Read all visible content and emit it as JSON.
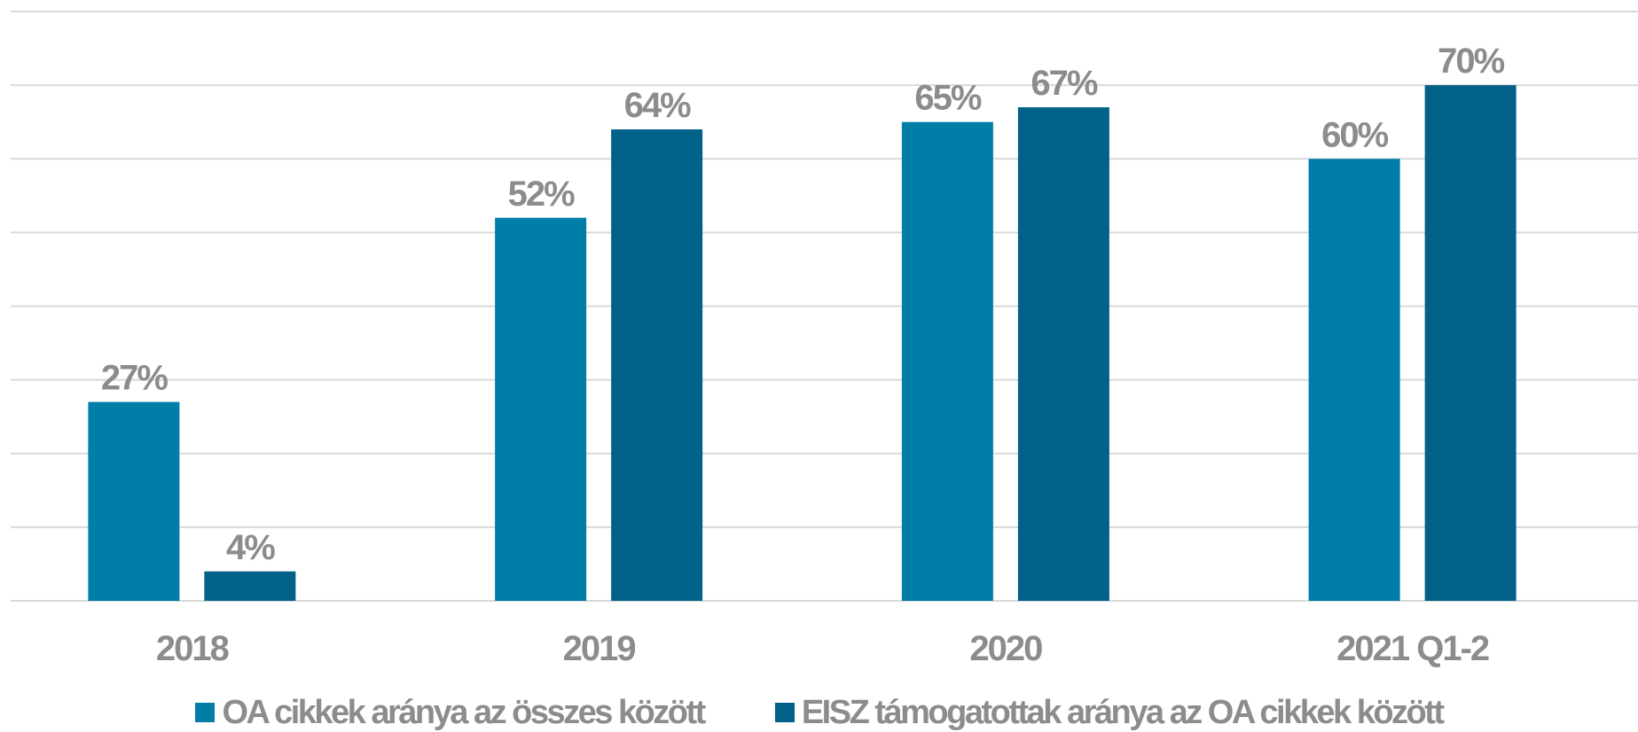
{
  "chart_data": {
    "type": "bar",
    "categories": [
      "2018",
      "2019",
      "2020",
      "2021 Q1-2"
    ],
    "series": [
      {
        "name": "OA cikkek aránya az összes között",
        "color": "#007ea7",
        "values": [
          27,
          52,
          65,
          60
        ],
        "labels": [
          "27%",
          "52%",
          "65%",
          "60%"
        ]
      },
      {
        "name": "EISZ támogatottak aránya az OA cikkek között",
        "color": "#026189",
        "values": [
          4,
          64,
          67,
          70
        ],
        "labels": [
          "4%",
          "64%",
          "67%",
          "70%"
        ]
      }
    ],
    "ylim": [
      0,
      80
    ],
    "grid": true,
    "legend_position": "bottom",
    "value_suffix": "%"
  }
}
